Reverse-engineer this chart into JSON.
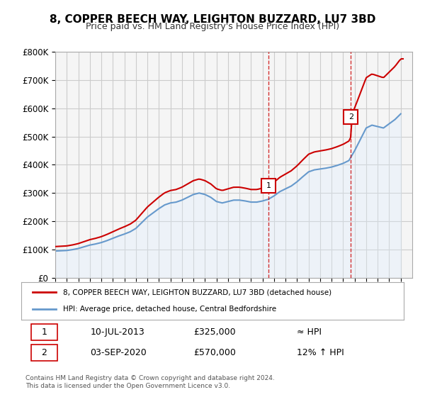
{
  "title": "8, COPPER BEECH WAY, LEIGHTON BUZZARD, LU7 3BD",
  "subtitle": "Price paid vs. HM Land Registry's House Price Index (HPI)",
  "ylabel_ticks": [
    "£0",
    "£100K",
    "£200K",
    "£300K",
    "£400K",
    "£500K",
    "£600K",
    "£700K",
    "£800K"
  ],
  "ylim": [
    0,
    800000
  ],
  "xlim_start": 1995,
  "xlim_end": 2026,
  "purchase1": {
    "date_num": 2013.53,
    "price": 325000,
    "label": "1",
    "annotation": "≈ HPI"
  },
  "purchase2": {
    "date_num": 2020.67,
    "price": 570000,
    "label": "2",
    "annotation": "12% ↑ HPI"
  },
  "legend_line1": "8, COPPER BEECH WAY, LEIGHTON BUZZARD, LU7 3BD (detached house)",
  "legend_line2": "HPI: Average price, detached house, Central Bedfordshire",
  "table_row1": [
    "1",
    "10-JUL-2013",
    "£325,000",
    "≈ HPI"
  ],
  "table_row2": [
    "2",
    "03-SEP-2020",
    "£570,000",
    "12% ↑ HPI"
  ],
  "footer": "Contains HM Land Registry data © Crown copyright and database right 2024.\nThis data is licensed under the Open Government Licence v3.0.",
  "hpi_color": "#6699cc",
  "price_color": "#cc0000",
  "background_color": "#ffffff",
  "plot_bg_color": "#f5f5f5",
  "grid_color": "#cccccc",
  "annotation_vline_color": "#cc0000",
  "hpi_fill_color": "#ddeeff"
}
